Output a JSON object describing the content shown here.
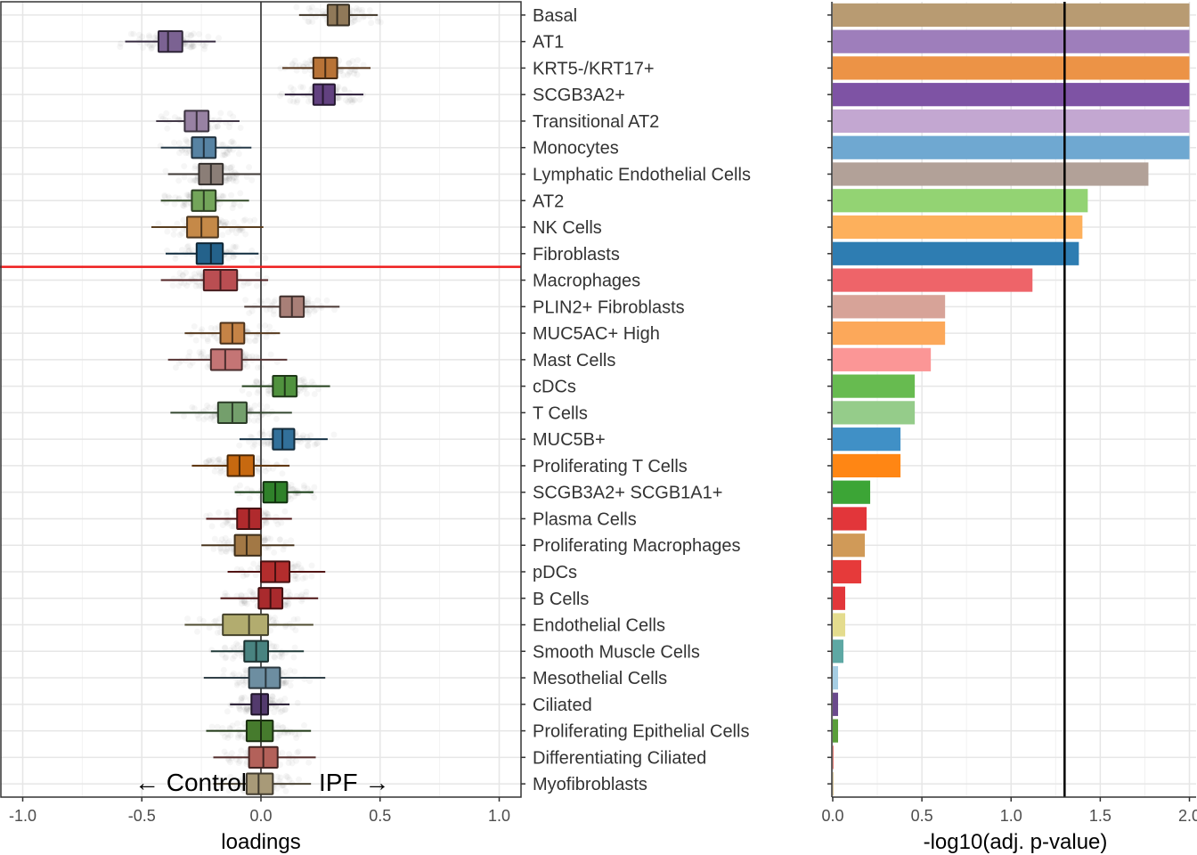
{
  "chart_data": [
    {
      "type": "boxplot",
      "xlabel": "loadings",
      "xlim": [
        -1.1,
        1.1
      ],
      "xticks": [
        "-1.0",
        "-0.5",
        "0.0",
        "0.5",
        "1.0"
      ],
      "xtick_values": [
        -1.0,
        -0.5,
        0.0,
        0.5,
        1.0
      ],
      "annotation_left": "← Control",
      "annotation_right": "IPF →",
      "reference_line_x": 0,
      "threshold_line_after_category": "Fibroblasts",
      "threshold_line_color": "#ee1c1c",
      "grid": true,
      "categories": [
        "Basal",
        "AT1",
        "KRT5-/KRT17+",
        "SCGB3A2+",
        "Transitional AT2",
        "Monocytes",
        "Lymphatic Endothelial Cells",
        "AT2",
        "NK Cells",
        "Fibroblasts",
        "Macrophages",
        "PLIN2+ Fibroblasts",
        "MUC5AC+ High",
        "Mast Cells",
        "cDCs",
        "T Cells",
        "MUC5B+",
        "Proliferating T Cells",
        "SCGB3A2+ SCGB1A1+",
        "Plasma Cells",
        "Proliferating Macrophages",
        "pDCs",
        "B Cells",
        "Endothelial Cells",
        "Smooth Muscle Cells",
        "Mesothelial Cells",
        "Ciliated",
        "Proliferating Epithelial Cells",
        "Differentiating Ciliated",
        "Myofibroblasts"
      ],
      "boxes": [
        {
          "whisker_low": 0.16,
          "q1": 0.28,
          "median": 0.32,
          "q3": 0.37,
          "whisker_high": 0.49,
          "color": "#b89b72"
        },
        {
          "whisker_low": -0.57,
          "q1": -0.43,
          "median": -0.39,
          "q3": -0.33,
          "whisker_high": -0.19,
          "color": "#9e7ebb"
        },
        {
          "whisker_low": 0.09,
          "q1": 0.22,
          "median": 0.27,
          "q3": 0.32,
          "whisker_high": 0.46,
          "color": "#ec9346"
        },
        {
          "whisker_low": 0.1,
          "q1": 0.22,
          "median": 0.26,
          "q3": 0.31,
          "whisker_high": 0.43,
          "color": "#7e53a4"
        },
        {
          "whisker_low": -0.44,
          "q1": -0.32,
          "median": -0.27,
          "q3": -0.22,
          "whisker_high": -0.09,
          "color": "#c3a7d1"
        },
        {
          "whisker_low": -0.42,
          "q1": -0.29,
          "median": -0.24,
          "q3": -0.19,
          "whisker_high": -0.04,
          "color": "#6fa8d1"
        },
        {
          "whisker_low": -0.39,
          "q1": -0.26,
          "median": -0.21,
          "q3": -0.16,
          "whisker_high": 0.0,
          "color": "#b2a198"
        },
        {
          "whisker_low": -0.42,
          "q1": -0.29,
          "median": -0.24,
          "q3": -0.19,
          "whisker_high": -0.05,
          "color": "#93d373"
        },
        {
          "whisker_low": -0.46,
          "q1": -0.31,
          "median": -0.25,
          "q3": -0.18,
          "whisker_high": 0.01,
          "color": "#fdb05c"
        },
        {
          "whisker_low": -0.4,
          "q1": -0.27,
          "median": -0.21,
          "q3": -0.16,
          "whisker_high": -0.01,
          "color": "#2e7db2"
        },
        {
          "whisker_low": -0.42,
          "q1": -0.24,
          "median": -0.17,
          "q3": -0.1,
          "whisker_high": 0.03,
          "color": "#ee6469"
        },
        {
          "whisker_low": -0.07,
          "q1": 0.08,
          "median": 0.13,
          "q3": 0.18,
          "whisker_high": 0.33,
          "color": "#d7a398"
        },
        {
          "whisker_low": -0.32,
          "q1": -0.17,
          "median": -0.12,
          "q3": -0.07,
          "whisker_high": 0.08,
          "color": "#fca85a"
        },
        {
          "whisker_low": -0.39,
          "q1": -0.21,
          "median": -0.15,
          "q3": -0.08,
          "whisker_high": 0.11,
          "color": "#fb9696"
        },
        {
          "whisker_low": -0.08,
          "q1": 0.05,
          "median": 0.1,
          "q3": 0.15,
          "whisker_high": 0.29,
          "color": "#67bb50"
        },
        {
          "whisker_low": -0.38,
          "q1": -0.18,
          "median": -0.12,
          "q3": -0.06,
          "whisker_high": 0.13,
          "color": "#95cc8a"
        },
        {
          "whisker_low": -0.09,
          "q1": 0.05,
          "median": 0.09,
          "q3": 0.14,
          "whisker_high": 0.28,
          "color": "#4090c6"
        },
        {
          "whisker_low": -0.29,
          "q1": -0.14,
          "median": -0.09,
          "q3": -0.03,
          "whisker_high": 0.12,
          "color": "#ff8614"
        },
        {
          "whisker_low": -0.11,
          "q1": 0.01,
          "median": 0.06,
          "q3": 0.11,
          "whisker_high": 0.22,
          "color": "#3ca536"
        },
        {
          "whisker_low": -0.23,
          "q1": -0.1,
          "median": -0.05,
          "q3": 0.0,
          "whisker_high": 0.13,
          "color": "#e2363a"
        },
        {
          "whisker_low": -0.25,
          "q1": -0.11,
          "median": -0.06,
          "q3": 0.0,
          "whisker_high": 0.14,
          "color": "#d09a58"
        },
        {
          "whisker_low": -0.14,
          "q1": 0.0,
          "median": 0.06,
          "q3": 0.12,
          "whisker_high": 0.27,
          "color": "#e63a3a"
        },
        {
          "whisker_low": -0.17,
          "q1": -0.01,
          "median": 0.04,
          "q3": 0.09,
          "whisker_high": 0.24,
          "color": "#d9363a"
        },
        {
          "whisker_low": -0.32,
          "q1": -0.16,
          "median": -0.05,
          "q3": 0.03,
          "whisker_high": 0.22,
          "color": "#e4dc8e"
        },
        {
          "whisker_low": -0.21,
          "q1": -0.07,
          "median": -0.02,
          "q3": 0.03,
          "whisker_high": 0.18,
          "color": "#5ea8a4"
        },
        {
          "whisker_low": -0.24,
          "q1": -0.05,
          "median": 0.02,
          "q3": 0.08,
          "whisker_high": 0.27,
          "color": "#8cb6ce"
        },
        {
          "whisker_low": -0.13,
          "q1": -0.04,
          "median": 0.0,
          "q3": 0.03,
          "whisker_high": 0.12,
          "color": "#6b4a8c"
        },
        {
          "whisker_low": -0.23,
          "q1": -0.06,
          "median": 0.0,
          "q3": 0.05,
          "whisker_high": 0.21,
          "color": "#5a9e3a"
        },
        {
          "whisker_low": -0.2,
          "q1": -0.05,
          "median": 0.01,
          "q3": 0.07,
          "whisker_high": 0.23,
          "color": "#e67c74"
        },
        {
          "whisker_low": -0.2,
          "q1": -0.06,
          "median": -0.01,
          "q3": 0.05,
          "whisker_high": 0.21,
          "color": "#d8c59a"
        }
      ]
    },
    {
      "type": "bar",
      "orientation": "horizontal",
      "xlabel": "-log10(adj. p-value)",
      "xlim": [
        0,
        2.0
      ],
      "xticks": [
        "0.0",
        "0.5",
        "1.0",
        "1.5",
        "2.0"
      ],
      "xtick_values": [
        0,
        0.5,
        1.0,
        1.5,
        2.0
      ],
      "reference_line_x": 1.3,
      "grid": true,
      "categories": [
        "Basal",
        "AT1",
        "KRT5-/KRT17+",
        "SCGB3A2+",
        "Transitional AT2",
        "Monocytes",
        "Lymphatic Endothelial Cells",
        "AT2",
        "NK Cells",
        "Fibroblasts",
        "Macrophages",
        "PLIN2+ Fibroblasts",
        "MUC5AC+ High",
        "Mast Cells",
        "cDCs",
        "T Cells",
        "MUC5B+",
        "Proliferating T Cells",
        "SCGB3A2+ SCGB1A1+",
        "Plasma Cells",
        "Proliferating Macrophages",
        "pDCs",
        "B Cells",
        "Endothelial Cells",
        "Smooth Muscle Cells",
        "Mesothelial Cells",
        "Ciliated",
        "Proliferating Epithelial Cells",
        "Differentiating Ciliated",
        "Myofibroblasts"
      ],
      "values": [
        2.0,
        2.0,
        2.0,
        2.0,
        2.0,
        2.0,
        1.77,
        1.43,
        1.4,
        1.38,
        1.12,
        0.63,
        0.63,
        0.55,
        0.46,
        0.46,
        0.38,
        0.38,
        0.21,
        0.19,
        0.18,
        0.16,
        0.07,
        0.07,
        0.06,
        0.03,
        0.03,
        0.03,
        0.005,
        0.005
      ],
      "colors": [
        "#b89b72",
        "#9e7ebb",
        "#ec9346",
        "#7e53a4",
        "#c3a7d1",
        "#6fa8d1",
        "#b2a198",
        "#93d373",
        "#fdb05c",
        "#2e7db2",
        "#ee6469",
        "#d7a398",
        "#fca85a",
        "#fb9696",
        "#67bb50",
        "#95cc8a",
        "#4090c6",
        "#ff8614",
        "#3ca536",
        "#e2363a",
        "#d09a58",
        "#e63a3a",
        "#e2363a",
        "#e4dc8e",
        "#5ea8a4",
        "#a6cee3",
        "#6b4a8c",
        "#5a9e3a",
        "#e67c74",
        "#d8c59a"
      ]
    }
  ]
}
